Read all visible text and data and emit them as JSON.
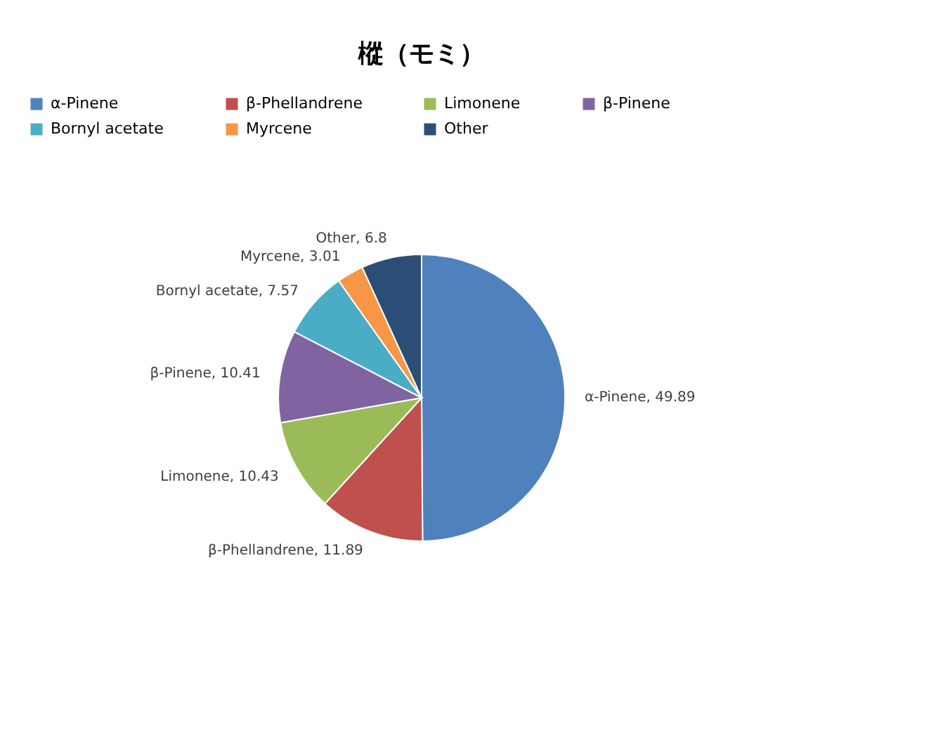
{
  "chart_data": {
    "type": "pie",
    "title": "樅（モミ）",
    "categories": [
      "α-Pinene",
      "β-Phellandrene",
      "Limonene",
      "β-Pinene",
      "Bornyl acetate",
      "Myrcene",
      "Other"
    ],
    "values": [
      49.89,
      11.89,
      10.43,
      10.41,
      7.57,
      3.01,
      6.8
    ],
    "colors": [
      "#4f81bd",
      "#c0504d",
      "#9bbb59",
      "#8064a2",
      "#4bacc6",
      "#f79646",
      "#2c4d75"
    ],
    "value_labels": [
      "α-Pinene, 49.89",
      "β-Phellandrene, 11.89",
      "Limonene, 10.43",
      "β-Pinene, 10.41",
      "Bornyl acetate, 7.57",
      "Myrcene, 3.01",
      "Other, 6.8"
    ],
    "legend": "top"
  }
}
